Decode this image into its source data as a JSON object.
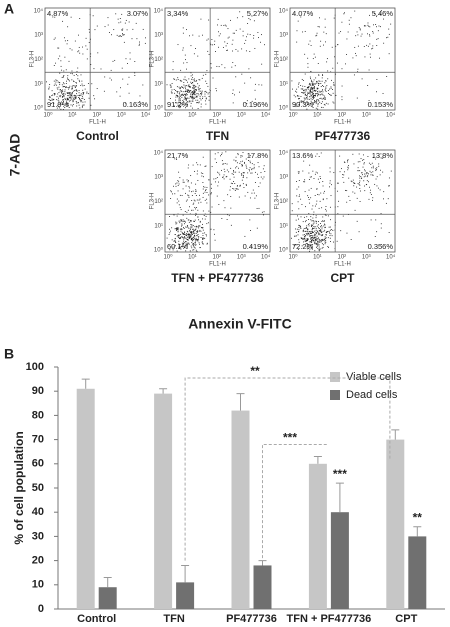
{
  "panel_a": {
    "label": "A",
    "y_label": "7-AAD",
    "x_label": "Annexin V-FITC",
    "plot_x_axis": "FL1-H",
    "plot_y_axis": "FL3-H",
    "ticks": [
      "10⁰",
      "10¹",
      "10²",
      "10³",
      "10⁴"
    ],
    "plots": [
      {
        "name": "Control",
        "quadrants": [
          "4.87%",
          "3.07%",
          "91.9%",
          "0.163%"
        ]
      },
      {
        "name": "TFN",
        "quadrants": [
          "3,34%",
          "5,27%",
          "91.2%",
          "0.196%"
        ]
      },
      {
        "name": "PF477736",
        "quadrants": [
          "4.07%",
          "5.46%",
          "90.3%",
          "0.153%"
        ]
      },
      {
        "name": "TFN + PF477736",
        "quadrants": [
          "21,7%",
          "17.8%",
          "60.1%",
          "0.419%"
        ]
      },
      {
        "name": "CPT",
        "quadrants": [
          "13.6%",
          "13,8%",
          "72.2%",
          "0.356%"
        ]
      }
    ]
  },
  "panel_b_label": "B",
  "chart_data": {
    "type": "bar",
    "categories": [
      "Control",
      "TFN",
      "PF477736",
      "TFN + PF477736",
      "CPT"
    ],
    "series": [
      {
        "name": "Viable cells",
        "color": "#c6c6c6",
        "values": [
          91,
          89,
          82,
          60,
          70
        ],
        "errors": [
          4,
          2,
          7,
          3,
          4
        ]
      },
      {
        "name": "Dead cells",
        "color": "#707070",
        "values": [
          9,
          11,
          18,
          40,
          30
        ],
        "errors": [
          4,
          7,
          2,
          12,
          4
        ]
      }
    ],
    "y_label": "% of cell population",
    "ylim": [
      0,
      100
    ],
    "yticks": [
      0,
      10,
      20,
      30,
      40,
      50,
      60,
      70,
      80,
      90,
      100
    ],
    "legend": "top-right",
    "annotations": [
      "**",
      "***",
      "***",
      "**"
    ]
  }
}
